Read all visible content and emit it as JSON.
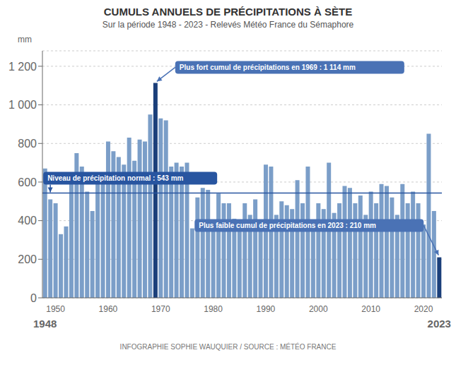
{
  "chart_data": {
    "type": "bar",
    "title": "CUMULS ANNUELS DE PRÉCIPITATIONS À SÈTE",
    "subtitle": "Sur la période 1948 - 2023 -  Relevés Météo France du Sémaphore",
    "footer": "INFOGRAPHIE SOPHIE WAUQUIER / SOURCE : MÉTÉO FRANCE",
    "ylabel": "mm",
    "categories": [
      "1948",
      null,
      "1950",
      null,
      null,
      null,
      null,
      null,
      null,
      null,
      null,
      null,
      "1960",
      null,
      null,
      null,
      null,
      null,
      null,
      null,
      null,
      null,
      "1970",
      null,
      null,
      null,
      null,
      null,
      null,
      null,
      null,
      null,
      "1980",
      null,
      null,
      null,
      null,
      null,
      null,
      null,
      null,
      null,
      "1990",
      null,
      null,
      null,
      null,
      null,
      null,
      null,
      null,
      null,
      "2000",
      null,
      null,
      null,
      null,
      null,
      null,
      null,
      null,
      null,
      "2010",
      null,
      null,
      null,
      null,
      null,
      null,
      null,
      null,
      null,
      "2020",
      null,
      null,
      "2023"
    ],
    "values": [
      670,
      510,
      490,
      330,
      370,
      600,
      750,
      680,
      550,
      450,
      590,
      590,
      810,
      760,
      730,
      690,
      830,
      710,
      820,
      810,
      950,
      1114,
      930,
      920,
      680,
      700,
      680,
      700,
      360,
      520,
      570,
      560,
      380,
      540,
      490,
      490,
      410,
      370,
      490,
      430,
      510,
      390,
      690,
      680,
      430,
      500,
      480,
      460,
      610,
      490,
      680,
      350,
      490,
      460,
      700,
      440,
      490,
      580,
      570,
      490,
      530,
      430,
      550,
      490,
      590,
      580,
      520,
      430,
      590,
      490,
      550,
      490,
      380,
      850,
      450,
      210
    ],
    "colors": [
      "#7B9EC8",
      "#7B9EC8",
      "#7B9EC8",
      "#7B9EC8",
      "#7B9EC8",
      "#7B9EC8",
      "#7B9EC8",
      "#7B9EC8",
      "#7B9EC8",
      "#7B9EC8",
      "#7B9EC8",
      "#7B9EC8",
      "#7B9EC8",
      "#7B9EC8",
      "#7B9EC8",
      "#7B9EC8",
      "#7B9EC8",
      "#7B9EC8",
      "#7B9EC8",
      "#7B9EC8",
      "#7B9EC8",
      "#1B3F7A",
      "#7B9EC8",
      "#7B9EC8",
      "#7B9EC8",
      "#7B9EC8",
      "#7B9EC8",
      "#7B9EC8",
      "#7B9EC8",
      "#7B9EC8",
      "#7B9EC8",
      "#7B9EC8",
      "#7B9EC8",
      "#7B9EC8",
      "#7B9EC8",
      "#7B9EC8",
      "#7B9EC8",
      "#7B9EC8",
      "#7B9EC8",
      "#7B9EC8",
      "#7B9EC8",
      "#7B9EC8",
      "#7B9EC8",
      "#7B9EC8",
      "#7B9EC8",
      "#7B9EC8",
      "#7B9EC8",
      "#7B9EC8",
      "#7B9EC8",
      "#7B9EC8",
      "#7B9EC8",
      "#7B9EC8",
      "#7B9EC8",
      "#7B9EC8",
      "#7B9EC8",
      "#7B9EC8",
      "#7B9EC8",
      "#7B9EC8",
      "#7B9EC8",
      "#7B9EC8",
      "#7B9EC8",
      "#7B9EC8",
      "#7B9EC8",
      "#7B9EC8",
      "#7B9EC8",
      "#7B9EC8",
      "#7B9EC8",
      "#7B9EC8",
      "#7B9EC8",
      "#7B9EC8",
      "#7B9EC8",
      "#7B9EC8",
      "#7B9EC8",
      "#7B9EC8",
      "#7B9EC8",
      "#1B3F7A"
    ],
    "ylim": [
      0,
      1280
    ],
    "yticks": [
      0,
      200,
      400,
      600,
      800,
      {
        "value": 1000,
        "label": "1 000"
      },
      {
        "value": 1200,
        "label": "1 200"
      }
    ],
    "grid": true,
    "reference_lines": [
      {
        "value": 543,
        "label": "Niveau de précipitation normal : 543 mm",
        "color": "#2855A0"
      }
    ],
    "annotations": [
      {
        "text": "Plus fort cumul de précipitations en 1969 : 1 114 mm",
        "value": 1114,
        "color": "#4A72B5"
      },
      {
        "text": "Plus faible cumul de précipitations en 2023 : 210 mm",
        "value": 210,
        "color": "#4A72B5"
      }
    ]
  }
}
